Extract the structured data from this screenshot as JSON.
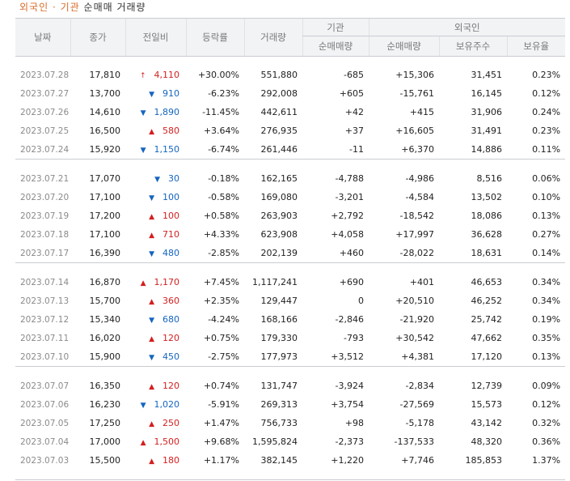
{
  "caption": {
    "part1": "외국인",
    "sep": "·",
    "part2": "기관",
    "rest": "순매매 거래량"
  },
  "headers": {
    "date": "날짜",
    "close": "종가",
    "change": "전일비",
    "rate": "등락률",
    "volume": "거래량",
    "inst_group": "기관",
    "inst_net": "순매매량",
    "foreign_group": "외국인",
    "foreign_net": "순매매량",
    "foreign_hold": "보유주수",
    "foreign_ratio": "보유율"
  },
  "colors": {
    "up": "#d31f1f",
    "down": "#1565c0",
    "accent": "#d86d2a"
  },
  "icons": {
    "up": "▲",
    "down": "▼",
    "upper_limit": "↑"
  },
  "groups": [
    {
      "rows": [
        {
          "date": "2023.07.28",
          "close": "17,810",
          "dir": "limit",
          "change": "4,110",
          "rate": "+30.00%",
          "volume": "551,880",
          "inst": "-685",
          "foreign": "+15,306",
          "hold": "31,451",
          "ratio": "0.23%"
        },
        {
          "date": "2023.07.27",
          "close": "13,700",
          "dir": "down",
          "change": "910",
          "rate": "-6.23%",
          "volume": "292,008",
          "inst": "+605",
          "foreign": "-15,761",
          "hold": "16,145",
          "ratio": "0.12%"
        },
        {
          "date": "2023.07.26",
          "close": "14,610",
          "dir": "down",
          "change": "1,890",
          "rate": "-11.45%",
          "volume": "442,611",
          "inst": "+42",
          "foreign": "+415",
          "hold": "31,906",
          "ratio": "0.24%"
        },
        {
          "date": "2023.07.25",
          "close": "16,500",
          "dir": "up",
          "change": "580",
          "rate": "+3.64%",
          "volume": "276,935",
          "inst": "+37",
          "foreign": "+16,605",
          "hold": "31,491",
          "ratio": "0.23%"
        },
        {
          "date": "2023.07.24",
          "close": "15,920",
          "dir": "down",
          "change": "1,150",
          "rate": "-6.74%",
          "volume": "261,446",
          "inst": "-11",
          "foreign": "+6,370",
          "hold": "14,886",
          "ratio": "0.11%"
        }
      ]
    },
    {
      "rows": [
        {
          "date": "2023.07.21",
          "close": "17,070",
          "dir": "down",
          "change": "30",
          "rate": "-0.18%",
          "volume": "162,165",
          "inst": "-4,788",
          "foreign": "-4,986",
          "hold": "8,516",
          "ratio": "0.06%"
        },
        {
          "date": "2023.07.20",
          "close": "17,100",
          "dir": "down",
          "change": "100",
          "rate": "-0.58%",
          "volume": "169,080",
          "inst": "-3,201",
          "foreign": "-4,584",
          "hold": "13,502",
          "ratio": "0.10%"
        },
        {
          "date": "2023.07.19",
          "close": "17,200",
          "dir": "up",
          "change": "100",
          "rate": "+0.58%",
          "volume": "263,903",
          "inst": "+2,792",
          "foreign": "-18,542",
          "hold": "18,086",
          "ratio": "0.13%"
        },
        {
          "date": "2023.07.18",
          "close": "17,100",
          "dir": "up",
          "change": "710",
          "rate": "+4.33%",
          "volume": "623,908",
          "inst": "+4,058",
          "foreign": "+17,997",
          "hold": "36,628",
          "ratio": "0.27%"
        },
        {
          "date": "2023.07.17",
          "close": "16,390",
          "dir": "down",
          "change": "480",
          "rate": "-2.85%",
          "volume": "202,139",
          "inst": "+460",
          "foreign": "-28,022",
          "hold": "18,631",
          "ratio": "0.14%"
        }
      ]
    },
    {
      "rows": [
        {
          "date": "2023.07.14",
          "close": "16,870",
          "dir": "up",
          "change": "1,170",
          "rate": "+7.45%",
          "volume": "1,117,241",
          "inst": "+690",
          "foreign": "+401",
          "hold": "46,653",
          "ratio": "0.34%"
        },
        {
          "date": "2023.07.13",
          "close": "15,700",
          "dir": "up",
          "change": "360",
          "rate": "+2.35%",
          "volume": "129,447",
          "inst": "0",
          "foreign": "+20,510",
          "hold": "46,252",
          "ratio": "0.34%"
        },
        {
          "date": "2023.07.12",
          "close": "15,340",
          "dir": "down",
          "change": "680",
          "rate": "-4.24%",
          "volume": "168,166",
          "inst": "-2,846",
          "foreign": "-21,920",
          "hold": "25,742",
          "ratio": "0.19%"
        },
        {
          "date": "2023.07.11",
          "close": "16,020",
          "dir": "up",
          "change": "120",
          "rate": "+0.75%",
          "volume": "179,330",
          "inst": "-793",
          "foreign": "+30,542",
          "hold": "47,662",
          "ratio": "0.35%"
        },
        {
          "date": "2023.07.10",
          "close": "15,900",
          "dir": "down",
          "change": "450",
          "rate": "-2.75%",
          "volume": "177,973",
          "inst": "+3,512",
          "foreign": "+4,381",
          "hold": "17,120",
          "ratio": "0.13%"
        }
      ]
    },
    {
      "rows": [
        {
          "date": "2023.07.07",
          "close": "16,350",
          "dir": "up",
          "change": "120",
          "rate": "+0.74%",
          "volume": "131,747",
          "inst": "-3,924",
          "foreign": "-2,834",
          "hold": "12,739",
          "ratio": "0.09%"
        },
        {
          "date": "2023.07.06",
          "close": "16,230",
          "dir": "down",
          "change": "1,020",
          "rate": "-5.91%",
          "volume": "269,313",
          "inst": "+3,754",
          "foreign": "-27,569",
          "hold": "15,573",
          "ratio": "0.12%"
        },
        {
          "date": "2023.07.05",
          "close": "17,250",
          "dir": "up",
          "change": "250",
          "rate": "+1.47%",
          "volume": "756,733",
          "inst": "+98",
          "foreign": "-5,178",
          "hold": "43,142",
          "ratio": "0.32%"
        },
        {
          "date": "2023.07.04",
          "close": "17,000",
          "dir": "up",
          "change": "1,500",
          "rate": "+9.68%",
          "volume": "1,595,824",
          "inst": "-2,373",
          "foreign": "-137,533",
          "hold": "48,320",
          "ratio": "0.36%"
        },
        {
          "date": "2023.07.03",
          "close": "15,500",
          "dir": "up",
          "change": "180",
          "rate": "+1.17%",
          "volume": "382,145",
          "inst": "+1,220",
          "foreign": "+7,746",
          "hold": "185,853",
          "ratio": "1.37%"
        }
      ]
    }
  ]
}
